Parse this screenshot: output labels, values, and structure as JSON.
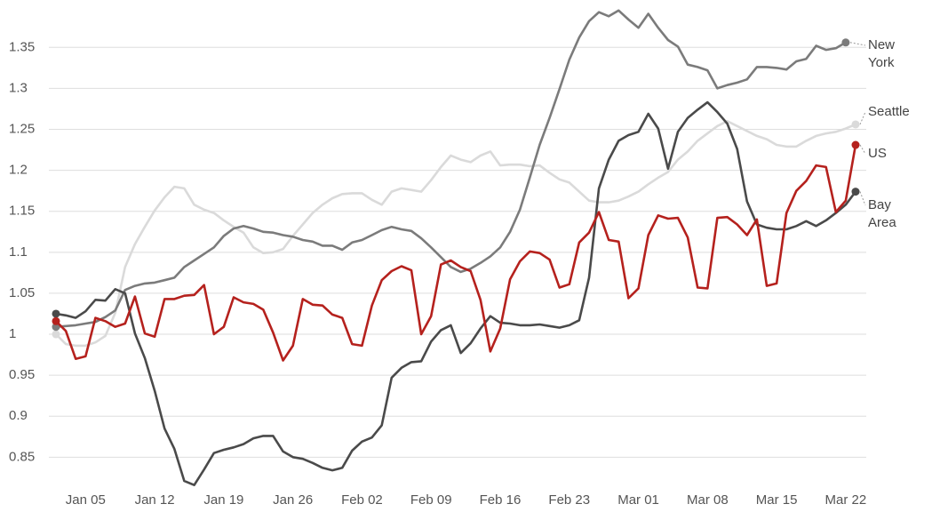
{
  "chart_data": {
    "type": "line",
    "categories": [
      null,
      null,
      null,
      "Jan 05",
      null,
      null,
      null,
      null,
      null,
      null,
      "Jan 12",
      null,
      null,
      null,
      null,
      null,
      null,
      "Jan 19",
      null,
      null,
      null,
      null,
      null,
      null,
      "Jan 26",
      null,
      null,
      null,
      null,
      null,
      null,
      "Feb 02",
      null,
      null,
      null,
      null,
      null,
      null,
      "Feb 09",
      null,
      null,
      null,
      null,
      null,
      null,
      "Feb 16",
      null,
      null,
      null,
      null,
      null,
      null,
      "Feb 23",
      null,
      null,
      null,
      null,
      null,
      null,
      "Mar 01",
      null,
      null,
      null,
      null,
      null,
      null,
      "Mar 08",
      null,
      null,
      null,
      null,
      null,
      null,
      "Mar 15",
      null,
      null,
      null,
      null,
      null,
      null,
      "Mar 22",
      null
    ],
    "series": [
      {
        "name": "Seattle",
        "color": "#dadada",
        "values": [
          1.0,
          0.988,
          0.986,
          0.986,
          0.99,
          0.998,
          1.026,
          1.082,
          1.11,
          1.131,
          1.151,
          1.167,
          1.18,
          1.178,
          1.158,
          1.152,
          1.148,
          1.139,
          1.131,
          1.124,
          1.106,
          1.099,
          1.1,
          1.104,
          1.12,
          1.134,
          1.148,
          1.158,
          1.166,
          1.171,
          1.172,
          1.172,
          1.164,
          1.158,
          1.174,
          1.178,
          1.176,
          1.174,
          1.188,
          1.204,
          1.218,
          1.213,
          1.21,
          1.218,
          1.223,
          1.206,
          1.207,
          1.207,
          1.205,
          1.206,
          1.197,
          1.189,
          1.185,
          1.174,
          1.163,
          1.161,
          1.161,
          1.163,
          1.168,
          1.174,
          1.183,
          1.191,
          1.198,
          1.213,
          1.223,
          1.236,
          1.245,
          1.254,
          1.26,
          1.254,
          1.248,
          1.242,
          1.238,
          1.231,
          1.229,
          1.229,
          1.236,
          1.242,
          1.245,
          1.247,
          1.251,
          1.256
        ]
      },
      {
        "name": "New York",
        "color": "#7b7b7b",
        "values": [
          1.009,
          1.01,
          1.011,
          1.013,
          1.015,
          1.021,
          1.029,
          1.054,
          1.059,
          1.062,
          1.063,
          1.066,
          1.069,
          1.082,
          1.09,
          1.098,
          1.106,
          1.12,
          1.129,
          1.132,
          1.129,
          1.125,
          1.124,
          1.121,
          1.119,
          1.115,
          1.113,
          1.108,
          1.108,
          1.103,
          1.112,
          1.115,
          1.121,
          1.127,
          1.131,
          1.128,
          1.126,
          1.117,
          1.106,
          1.094,
          1.082,
          1.076,
          1.08,
          1.087,
          1.095,
          1.106,
          1.125,
          1.152,
          1.191,
          1.231,
          1.264,
          1.299,
          1.335,
          1.362,
          1.382,
          1.393,
          1.388,
          1.395,
          1.384,
          1.374,
          1.391,
          1.374,
          1.359,
          1.351,
          1.329,
          1.326,
          1.322,
          1.3,
          1.304,
          1.307,
          1.311,
          1.326,
          1.326,
          1.325,
          1.323,
          1.333,
          1.336,
          1.352,
          1.347,
          1.349,
          1.356,
          null
        ]
      },
      {
        "name": "Bay Area",
        "color": "#4a4a4a",
        "values": [
          1.025,
          1.023,
          1.02,
          1.028,
          1.042,
          1.041,
          1.055,
          1.05,
          1.001,
          0.971,
          0.931,
          0.885,
          0.86,
          0.821,
          0.816,
          0.835,
          0.855,
          0.859,
          0.862,
          0.866,
          0.873,
          0.876,
          0.876,
          0.857,
          0.85,
          0.848,
          0.843,
          0.837,
          0.834,
          0.837,
          0.858,
          0.869,
          0.874,
          0.889,
          0.947,
          0.959,
          0.966,
          0.967,
          0.991,
          1.005,
          1.011,
          0.977,
          0.989,
          1.007,
          1.022,
          1.014,
          1.013,
          1.011,
          1.011,
          1.012,
          1.01,
          1.008,
          1.011,
          1.017,
          1.069,
          1.178,
          1.213,
          1.236,
          1.243,
          1.247,
          1.269,
          1.251,
          1.202,
          1.247,
          1.264,
          1.274,
          1.283,
          1.271,
          1.257,
          1.226,
          1.162,
          1.134,
          1.13,
          1.128,
          1.128,
          1.132,
          1.138,
          1.132,
          1.139,
          1.148,
          1.158,
          1.174
        ]
      },
      {
        "name": "US",
        "color": "#b5211d",
        "values": [
          1.016,
          1.004,
          0.97,
          0.973,
          1.02,
          1.016,
          1.009,
          1.013,
          1.046,
          1.001,
          0.997,
          1.043,
          1.043,
          1.047,
          1.048,
          1.06,
          1.0,
          1.009,
          1.045,
          1.039,
          1.037,
          1.03,
          1.002,
          0.968,
          0.986,
          1.043,
          1.036,
          1.035,
          1.024,
          1.02,
          0.988,
          0.986,
          1.035,
          1.066,
          1.077,
          1.083,
          1.078,
          1.0,
          1.022,
          1.085,
          1.09,
          1.082,
          1.077,
          1.042,
          0.979,
          1.007,
          1.067,
          1.089,
          1.101,
          1.099,
          1.091,
          1.057,
          1.061,
          1.112,
          1.124,
          1.149,
          1.115,
          1.113,
          1.044,
          1.056,
          1.121,
          1.145,
          1.141,
          1.142,
          1.118,
          1.057,
          1.056,
          1.142,
          1.143,
          1.134,
          1.121,
          1.14,
          1.059,
          1.062,
          1.148,
          1.175,
          1.187,
          1.206,
          1.204,
          1.149,
          1.163,
          1.231
        ]
      }
    ],
    "ylim": [
      0.815,
      1.4
    ],
    "yticks": [
      0.85,
      0.9,
      0.95,
      1,
      1.05,
      1.1,
      1.15,
      1.2,
      1.25,
      1.3,
      1.35
    ],
    "grid": true
  }
}
